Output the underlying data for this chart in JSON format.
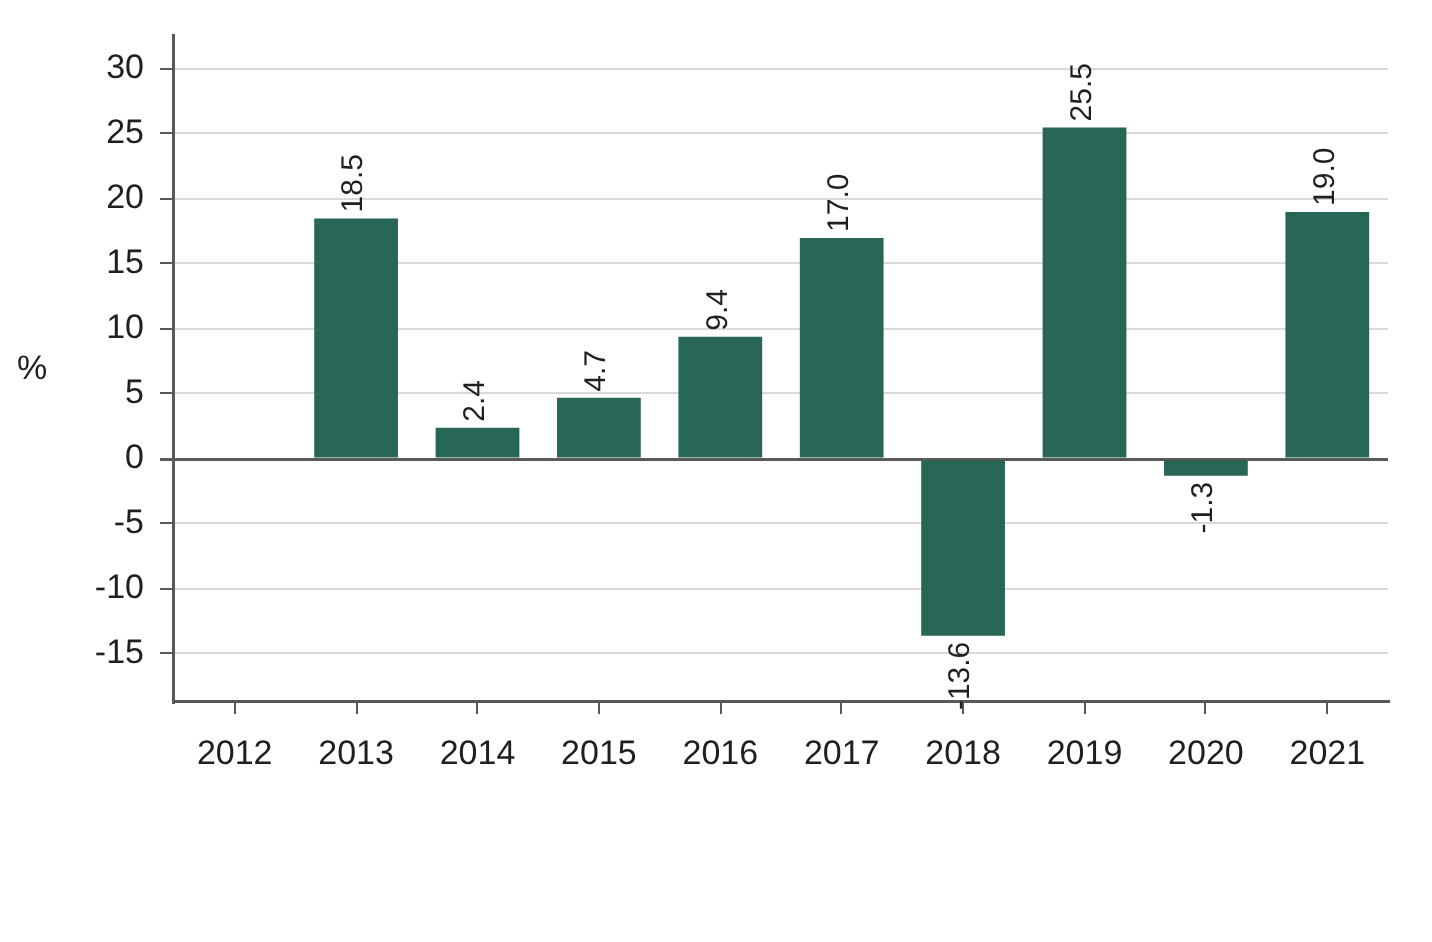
{
  "chart_data": {
    "type": "bar",
    "ylabel": "%",
    "categories": [
      "2012",
      "2013",
      "2014",
      "2015",
      "2016",
      "2017",
      "2018",
      "2019",
      "2020",
      "2021"
    ],
    "series": [
      {
        "color": "#286657",
        "values": [
          null,
          18.5,
          2.4,
          4.7,
          9.4,
          17.0,
          -13.6,
          25.5,
          -1.3,
          19.0
        ],
        "value_labels": [
          null,
          "18.5",
          "2.4",
          "4.7",
          "9.4",
          "17.0",
          "-13.6",
          "25.5",
          "-1.3",
          "19.0"
        ]
      }
    ],
    "ylim": [
      -18.7,
      32.5
    ],
    "yticks": [
      -15,
      -10,
      -5,
      0,
      5,
      10,
      15,
      20,
      25,
      30
    ],
    "grid": "y"
  }
}
